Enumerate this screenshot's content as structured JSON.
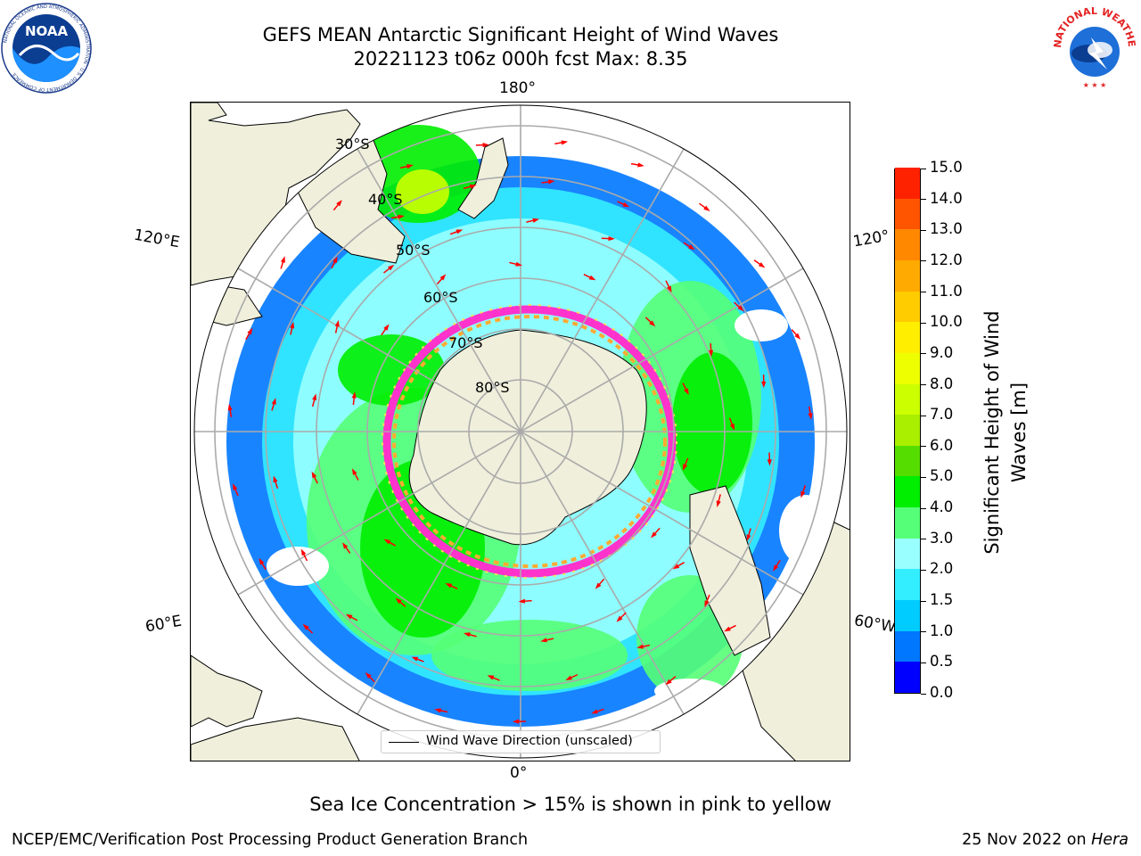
{
  "header": {
    "title_line1": "GEFS MEAN Antarctic Significant Height of Wind Waves",
    "title_line2": "20221123 t06z 000h fcst   Max: 8.35"
  },
  "logos": {
    "noaa": {
      "name": "NOAA",
      "ring_text": "NATIONAL OCEANIC AND ATMOSPHERIC ADMINISTRATION · U.S. DEPARTMENT OF COMMERCE"
    },
    "nws": {
      "ring_text": "NATIONAL WEATHER SERVICE"
    }
  },
  "map": {
    "projection": "south-polar-stereographic",
    "longitude_labels": {
      "top": "180°",
      "bottom": "0°",
      "upper_left": "120°E",
      "upper_right": "120°",
      "lower_left": "60°E",
      "lower_right": "60°W"
    },
    "latitude_labels": [
      "30°S",
      "40°S",
      "50°S",
      "60°S",
      "70°S",
      "80°S"
    ],
    "legend_label": "Wind Wave Direction (unscaled)",
    "arrow_color": "#ff0000",
    "land_color": "#efefdc",
    "ice_edge_colors": [
      "#ff33cc",
      "#ffaa33",
      "#ffdd55"
    ]
  },
  "colorbar": {
    "title": "Significant Height of Wind Waves [m]",
    "ticks": [
      "0.0",
      "0.5",
      "1.0",
      "1.5",
      "2.0",
      "3.0",
      "4.0",
      "5.0",
      "6.0",
      "7.0",
      "8.0",
      "9.0",
      "10.0",
      "11.0",
      "12.0",
      "13.0",
      "14.0",
      "15.0"
    ],
    "colors": [
      "#0000ff",
      "#0077ff",
      "#00ccff",
      "#33eeff",
      "#99ffff",
      "#55ff77",
      "#00ee00",
      "#55dd00",
      "#aaee00",
      "#ccff00",
      "#eeff00",
      "#ffee00",
      "#ffcc00",
      "#ffaa00",
      "#ff8800",
      "#ff5500",
      "#ff2200"
    ]
  },
  "note": "Sea Ice Concentration > 15% is shown in pink to yellow",
  "footer": {
    "left": "NCEP/EMC/Verification Post Processing Product Generation Branch",
    "date": "25 Nov 2022 on ",
    "host": "Hera"
  }
}
